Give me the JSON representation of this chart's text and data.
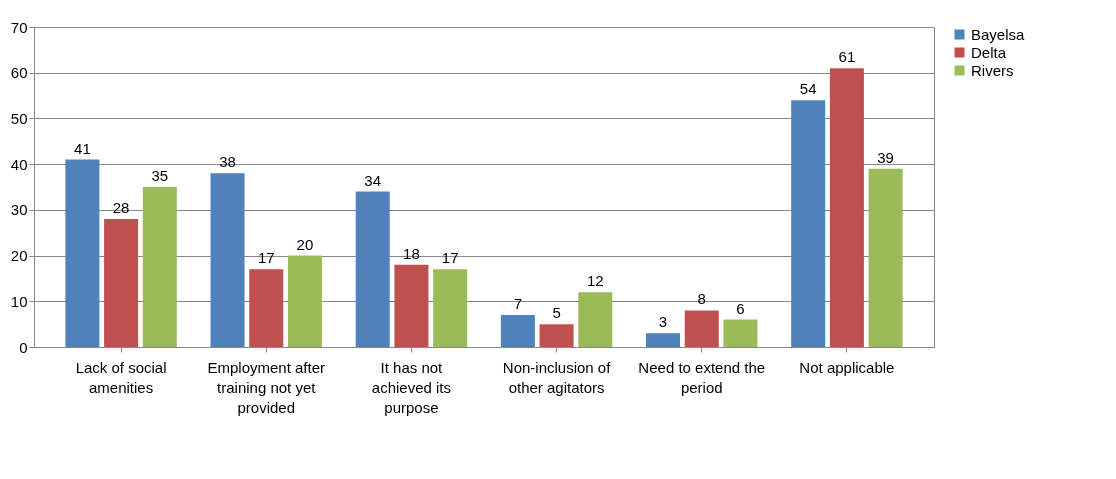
{
  "chart_data": {
    "type": "bar",
    "categories": [
      "Lack of social amenities",
      "Employment after training not yet provided",
      "It has not achieved its purpose",
      "Non-inclusion of other agitators",
      "Need to extend the period",
      "Not applicable"
    ],
    "series": [
      {
        "name": "Bayelsa",
        "color": "#4f81bd",
        "values": [
          41,
          38,
          34,
          7,
          3,
          54
        ]
      },
      {
        "name": "Delta",
        "color": "#c0504d",
        "values": [
          28,
          17,
          18,
          5,
          8,
          61
        ]
      },
      {
        "name": "Rivers",
        "color": "#9bbb59",
        "values": [
          35,
          20,
          17,
          12,
          6,
          39
        ]
      }
    ],
    "ylim": [
      0,
      70
    ],
    "yticks": [
      0,
      10,
      20,
      30,
      40,
      50,
      60,
      70
    ],
    "grid": "y",
    "legend": "right",
    "data_labels": true
  }
}
